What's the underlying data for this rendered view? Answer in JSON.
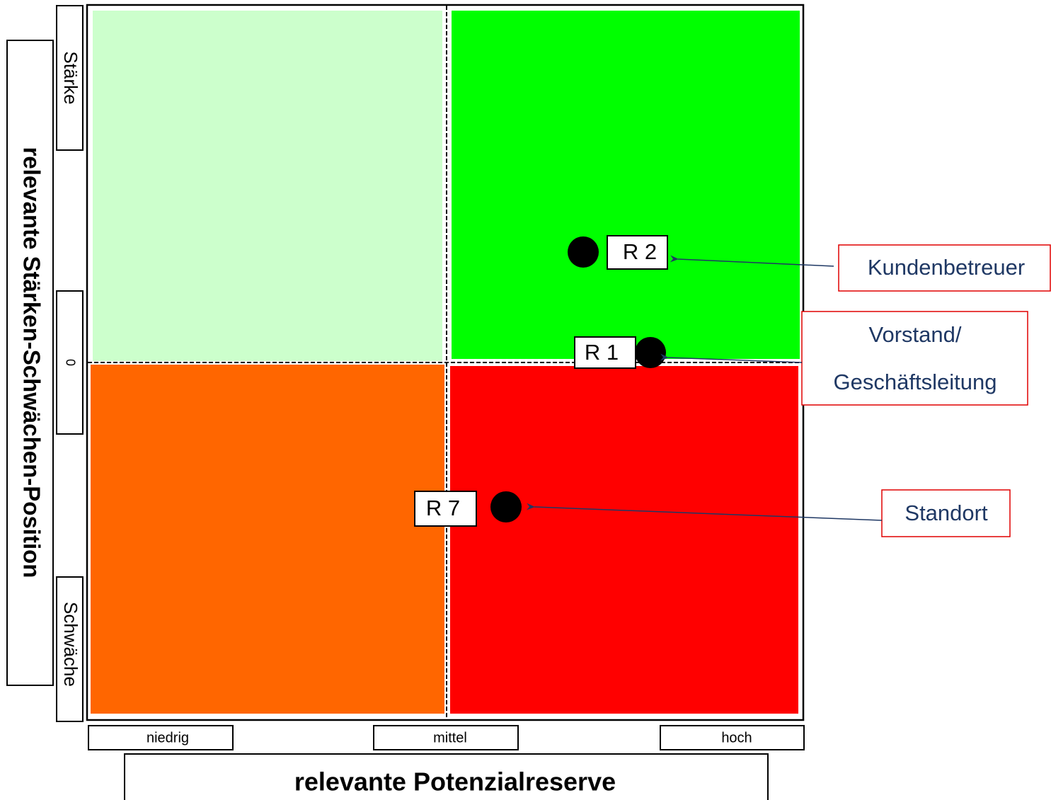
{
  "y_axis": {
    "title": "relevante Stärken-Schwächen-Position",
    "labels": [
      "Stärke",
      "0",
      "Schwäche"
    ]
  },
  "x_axis": {
    "title": "relevante Potenzialreserve",
    "labels": [
      "niedrig",
      "mittel",
      "hoch"
    ]
  },
  "points": [
    {
      "label": "R 2"
    },
    {
      "label": "R 1"
    },
    {
      "label": "R 7"
    }
  ],
  "callouts": [
    {
      "lines": [
        "Kundenbetreuer"
      ]
    },
    {
      "lines": [
        "Vorstand/",
        "Geschäftsleitung"
      ]
    },
    {
      "lines": [
        "Standort"
      ]
    }
  ]
}
